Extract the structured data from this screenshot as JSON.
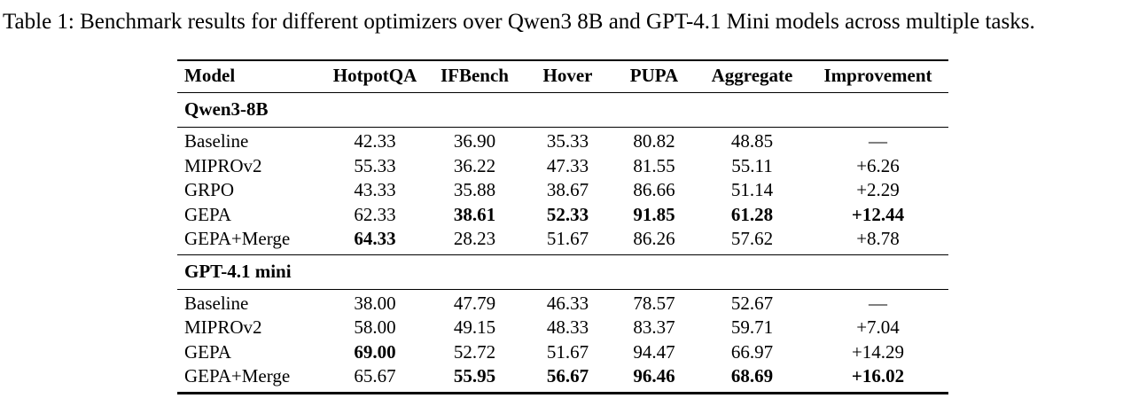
{
  "colors": {
    "background": "#ffffff",
    "text": "#000000",
    "rule": "#000000"
  },
  "caption": "Table 1: Benchmark results for different optimizers over Qwen3 8B and GPT-4.1 Mini models across multiple tasks.",
  "chart_data": {
    "type": "table",
    "title": "Table 1: Benchmark results for different optimizers over Qwen3 8B and GPT-4.1 Mini models across multiple tasks.",
    "columns": [
      "Model",
      "HotpotQA",
      "IFBench",
      "Hover",
      "PUPA",
      "Aggregate",
      "Improvement"
    ],
    "sections": [
      {
        "label": "Qwen3-8B",
        "rows": [
          {
            "cells": [
              "Baseline",
              "42.33",
              "36.90",
              "35.33",
              "80.82",
              "48.85",
              "—"
            ],
            "bold": []
          },
          {
            "cells": [
              "MIPROv2",
              "55.33",
              "36.22",
              "47.33",
              "81.55",
              "55.11",
              "+6.26"
            ],
            "bold": []
          },
          {
            "cells": [
              "GRPO",
              "43.33",
              "35.88",
              "38.67",
              "86.66",
              "51.14",
              "+2.29"
            ],
            "bold": []
          },
          {
            "cells": [
              "GEPA",
              "62.33",
              "38.61",
              "52.33",
              "91.85",
              "61.28",
              "+12.44"
            ],
            "bold": [
              2,
              3,
              4,
              5,
              6
            ]
          },
          {
            "cells": [
              "GEPA+Merge",
              "64.33",
              "28.23",
              "51.67",
              "86.26",
              "57.62",
              "+8.78"
            ],
            "bold": [
              1
            ]
          }
        ]
      },
      {
        "label": "GPT-4.1 mini",
        "rows": [
          {
            "cells": [
              "Baseline",
              "38.00",
              "47.79",
              "46.33",
              "78.57",
              "52.67",
              "—"
            ],
            "bold": []
          },
          {
            "cells": [
              "MIPROv2",
              "58.00",
              "49.15",
              "48.33",
              "83.37",
              "59.71",
              "+7.04"
            ],
            "bold": []
          },
          {
            "cells": [
              "GEPA",
              "69.00",
              "52.72",
              "51.67",
              "94.47",
              "66.97",
              "+14.29"
            ],
            "bold": [
              1
            ]
          },
          {
            "cells": [
              "GEPA+Merge",
              "65.67",
              "55.95",
              "56.67",
              "96.46",
              "68.69",
              "+16.02"
            ],
            "bold": [
              2,
              3,
              4,
              5,
              6
            ]
          }
        ]
      }
    ]
  }
}
